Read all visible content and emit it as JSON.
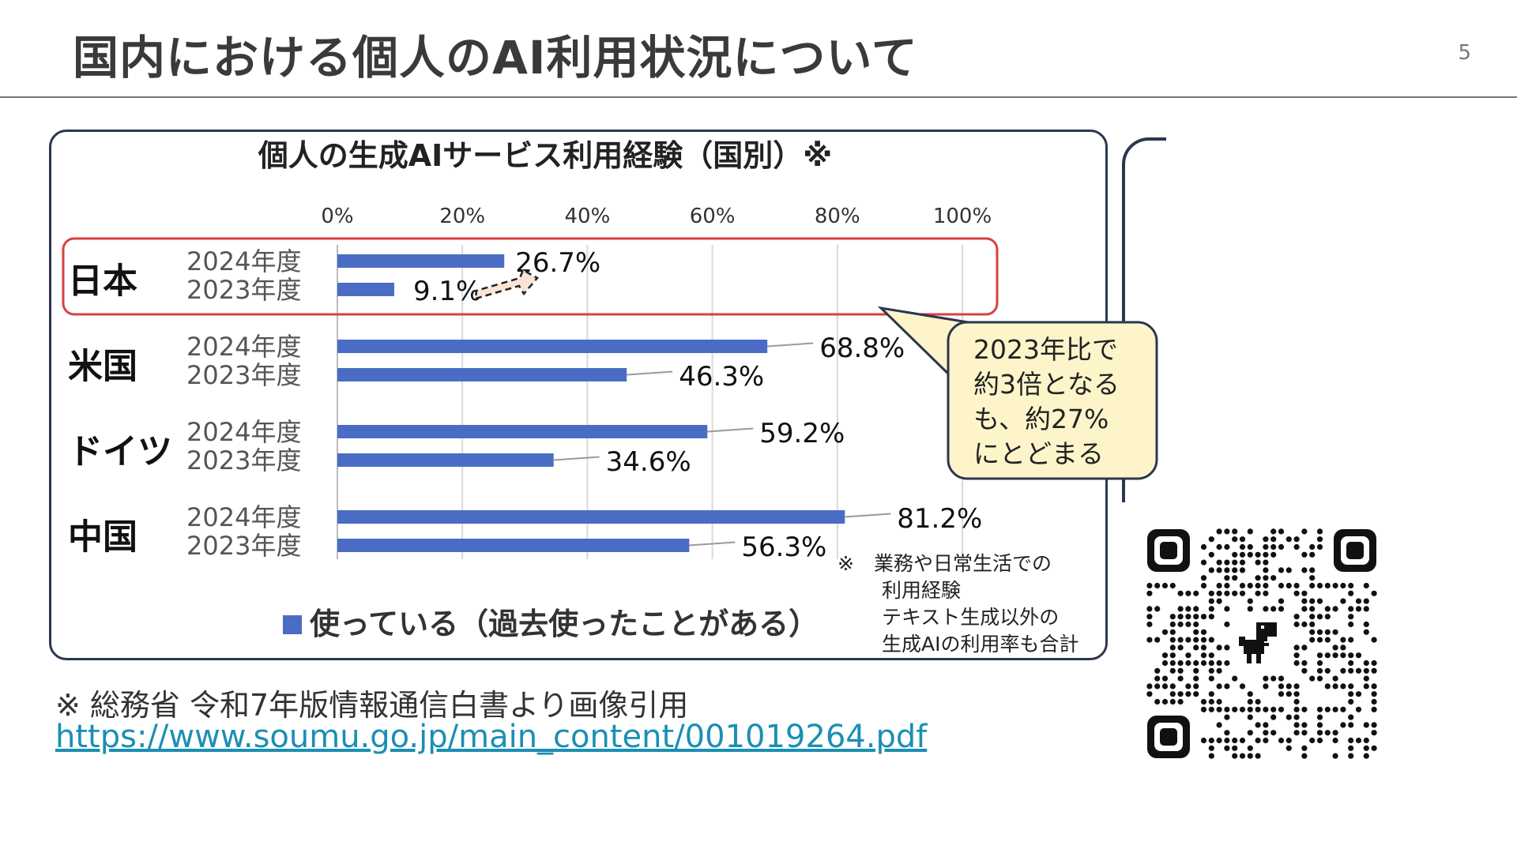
{
  "slide": {
    "title": "国内における個人のAI利用状況について",
    "page_number": "5",
    "source_text": "※ 総務省 令和7年版情報通信白書より画像引用",
    "source_link": "https://www.soumu.go.jp/main_content/001019264.pdf"
  },
  "chart_data": {
    "type": "bar",
    "orientation": "horizontal",
    "title": "個人の生成AIサービス利用経験（国別）※",
    "x_ticks": [
      "0%",
      "20%",
      "40%",
      "60%",
      "80%",
      "100%"
    ],
    "xlim": [
      0,
      100
    ],
    "grid": true,
    "categories": [
      "日本",
      "米国",
      "ドイツ",
      "中国"
    ],
    "year_labels": [
      "2024年度",
      "2023年度"
    ],
    "values": [
      [
        26.7,
        9.1
      ],
      [
        68.8,
        46.3
      ],
      [
        59.2,
        34.6
      ],
      [
        81.2,
        56.3
      ]
    ],
    "value_labels": [
      [
        "26.7%",
        "9.1%"
      ],
      [
        "68.8%",
        "46.3%"
      ],
      [
        "59.2%",
        "34.6%"
      ],
      [
        "81.2%",
        "56.3%"
      ]
    ],
    "bar_color": "#4a6cc4",
    "highlight_color": "#d8413f",
    "legend": "使っている（過去使ったことがある）",
    "legend_placement": "bottom",
    "callout_lines": [
      "2023年比で",
      "約3倍となる",
      "も、約27%",
      "にとどまる"
    ],
    "callout_color": "#fdf5c9",
    "footnote_lines": [
      "※　業務や日常生活での",
      "利用経験",
      "テキスト生成以外の",
      "生成AIの利用率も合計"
    ]
  },
  "qr_code": {
    "icon": "dinosaur-icon"
  }
}
